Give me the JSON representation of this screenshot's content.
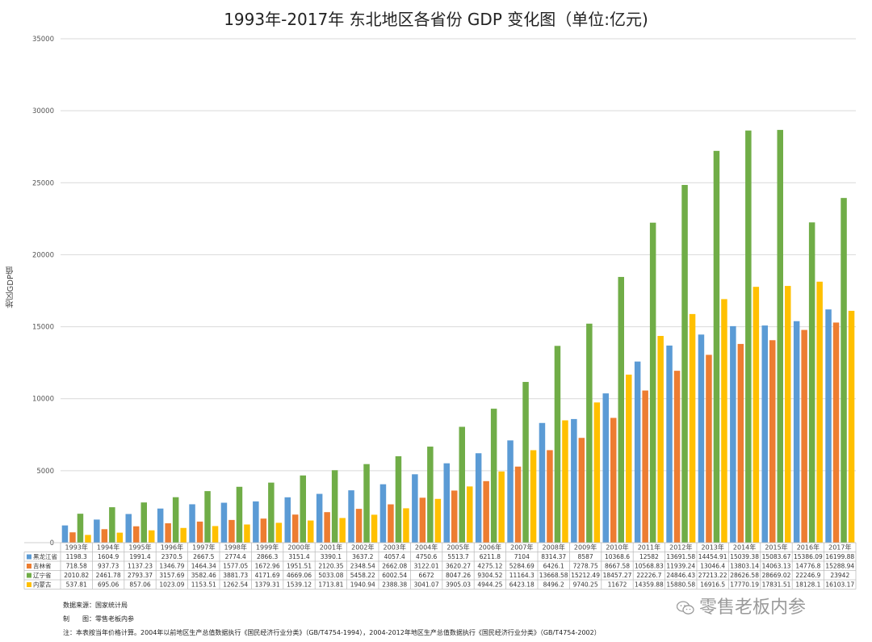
{
  "colors": {
    "黑龙江省": "#5b9bd5",
    "吉林省": "#ed7d31",
    "辽宁省": "#70ad47",
    "内蒙古": "#ffc000"
  },
  "notes": {
    "source": "数据来源：国家统计局",
    "maker": "制　　图：零售老板内参",
    "remark": "注：本表按当年价格计算。2004年以前地区生产总值数据执行《国民经济行业分类》（GB/T4754-1994），2004-2012年地区生产总值数据执行《国民经济行业分类》（GB/T4754-2002）"
  },
  "watermark": {
    "text": "零售老板内参",
    "icon": "wechat-icon"
  },
  "chart_data": {
    "type": "bar",
    "title": "1993年-2017年 东北地区各省份 GDP 变化图（单位:亿元)",
    "ylabel": "地区GDP值",
    "xlabel": "",
    "ylim": [
      0,
      35000
    ],
    "yticks": [
      0,
      5000,
      10000,
      15000,
      20000,
      25000,
      30000,
      35000
    ],
    "grid": true,
    "legend": "data-table",
    "categories": [
      "1993年",
      "1994年",
      "1995年",
      "1996年",
      "1997年",
      "1998年",
      "1999年",
      "2000年",
      "2001年",
      "2002年",
      "2003年",
      "2004年",
      "2005年",
      "2006年",
      "2007年",
      "2008年",
      "2009年",
      "2010年",
      "2011年",
      "2012年",
      "2013年",
      "2014年",
      "2015年",
      "2016年",
      "2017年"
    ],
    "series": [
      {
        "name": "黑龙江省",
        "values": [
          1198.3,
          1604.9,
          1991.4,
          2370.5,
          2667.5,
          2774.4,
          2866.3,
          3151.4,
          3390.1,
          3637.2,
          4057.4,
          4750.6,
          5513.7,
          6211.8,
          7104,
          8314.37,
          8587,
          10368.6,
          12582,
          13691.58,
          14454.91,
          15039.38,
          15083.67,
          15386.09,
          16199.88
        ],
        "labels": [
          "1198.3",
          "1604.9",
          "1991.4",
          "2370.5",
          "2667.5",
          "2774.4",
          "2866.3",
          "3151.4",
          "3390.1",
          "3637.2",
          "4057.4",
          "4750.6",
          "5513.7",
          "6211.8",
          "7104",
          "8314.37",
          "8587",
          "10368.6",
          "12582",
          "13691.58",
          "14454.91",
          "15039.38",
          "15083.67",
          "15386.09",
          "16199.88"
        ]
      },
      {
        "name": "吉林省",
        "values": [
          718.58,
          937.73,
          1137.23,
          1346.79,
          1464.34,
          1577.05,
          1672.96,
          1951.51,
          2120.35,
          2348.54,
          2662.08,
          3122.01,
          3620.27,
          4275.12,
          5284.69,
          6426.1,
          7278.75,
          8667.58,
          10568.83,
          11939.24,
          13046.4,
          13803.14,
          14063.13,
          14776.8,
          15288.94
        ],
        "labels": [
          "718.58",
          "937.73",
          "1137.23",
          "1346.79",
          "1464.34",
          "1577.05",
          "1672.96",
          "1951.51",
          "2120.35",
          "2348.54",
          "2662.08",
          "3122.01",
          "3620.27",
          "4275.12",
          "5284.69",
          "6426.1",
          "7278.75",
          "8667.58",
          "10568.83",
          "11939.24",
          "13046.4",
          "13803.14",
          "14063.13",
          "14776.8",
          "15288.94"
        ]
      },
      {
        "name": "辽宁省",
        "values": [
          2010.82,
          2461.78,
          2793.37,
          3157.69,
          3582.46,
          3881.73,
          4171.69,
          4669.06,
          5033.08,
          5458.22,
          6002.54,
          6672,
          8047.26,
          9304.52,
          11164.3,
          13668.58,
          15212.49,
          18457.27,
          22226.7,
          24846.43,
          27213.22,
          28626.58,
          28669.02,
          22246.9,
          23942
        ],
        "labels": [
          "2010.82",
          "2461.78",
          "2793.37",
          "3157.69",
          "3582.46",
          "3881.73",
          "4171.69",
          "4669.06",
          "5033.08",
          "5458.22",
          "6002.54",
          "6672",
          "8047.26",
          "9304.52",
          "11164.3",
          "13668.58",
          "15212.49",
          "18457.27",
          "22226.7",
          "24846.43",
          "27213.22",
          "28626.58",
          "28669.02",
          "22246.9",
          "23942"
        ]
      },
      {
        "name": "内蒙古",
        "values": [
          537.81,
          695.06,
          857.06,
          1023.09,
          1153.51,
          1262.54,
          1379.31,
          1539.12,
          1713.81,
          1940.94,
          2388.38,
          3041.07,
          3905.03,
          4944.25,
          6423.18,
          8496.2,
          9740.25,
          11672,
          14359.88,
          15880.58,
          16916.5,
          17770.19,
          17831.51,
          18128.1,
          16103.17
        ],
        "labels": [
          "537.81",
          "695.06",
          "857.06",
          "1023.09",
          "1153.51",
          "1262.54",
          "1379.31",
          "1539.12",
          "1713.81",
          "1940.94",
          "2388.38",
          "3041.07",
          "3905.03",
          "4944.25",
          "6423.18",
          "8496.2",
          "9740.25",
          "11672",
          "14359.88",
          "15880.58",
          "16916.5",
          "17770.19",
          "17831.51",
          "18128.1",
          "16103.17"
        ]
      }
    ]
  }
}
